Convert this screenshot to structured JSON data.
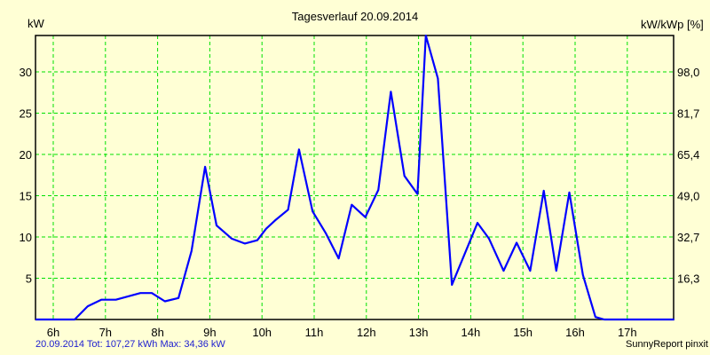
{
  "title": "Tagesverlauf 20.09.2014",
  "y_axis_left_label": "kW",
  "y_axis_right_label": "kW/kWp [%]",
  "footer_summary": "20.09.2014 Tot: 107,27 kWh Max: 34,36 kW",
  "footer_brand": "SunnyReport pinxit",
  "colors": {
    "background": "#ffffd5",
    "line": "#0000ff",
    "grid": "#00e000",
    "axis": "#000000",
    "footer_text": "#2020d0"
  },
  "chart_data": {
    "type": "line",
    "title": "Tagesverlauf 20.09.2014",
    "xlabel": "",
    "ylabel": "kW",
    "ylabel_right": "kW/kWp [%]",
    "x_ticks": [
      "6h",
      "7h",
      "8h",
      "9h",
      "10h",
      "11h",
      "12h",
      "13h",
      "14h",
      "15h",
      "16h",
      "17h"
    ],
    "y_ticks_left": [
      "5",
      "10",
      "15",
      "20",
      "25",
      "30"
    ],
    "y_ticks_right": [
      "16,3",
      "32,7",
      "49,0",
      "65,4",
      "81,7",
      "98,0"
    ],
    "xlim": [
      5.66,
      17.9
    ],
    "ylim": [
      0,
      34.4
    ],
    "grid": true,
    "series": [
      {
        "name": "kW",
        "x": [
          5.66,
          6.41,
          6.66,
          6.92,
          7.2,
          7.67,
          7.89,
          8.14,
          8.4,
          8.65,
          8.91,
          9.13,
          9.42,
          9.67,
          9.91,
          10.08,
          10.25,
          10.5,
          10.71,
          10.97,
          11.22,
          11.47,
          11.72,
          11.98,
          12.23,
          12.47,
          12.73,
          12.98,
          13.14,
          13.37,
          13.64,
          14.13,
          14.35,
          14.63,
          14.88,
          15.14,
          15.4,
          15.64,
          15.89,
          16.15,
          16.39,
          16.56,
          17.9
        ],
        "values": [
          0,
          0,
          1.6,
          2.4,
          2.4,
          3.2,
          3.2,
          2.2,
          2.6,
          8.3,
          18.5,
          11.4,
          9.8,
          9.2,
          9.6,
          11.0,
          12.0,
          13.3,
          20.6,
          13.1,
          10.5,
          7.4,
          13.9,
          12.4,
          15.7,
          27.6,
          17.4,
          15.2,
          34.4,
          29.2,
          4.2,
          11.7,
          9.8,
          5.9,
          9.3,
          5.9,
          15.6,
          5.9,
          15.4,
          5.4,
          0.3,
          0,
          0
        ]
      }
    ],
    "annotations": [
      "Tot: 107,27 kWh",
      "Max: 34,36 kW"
    ]
  }
}
